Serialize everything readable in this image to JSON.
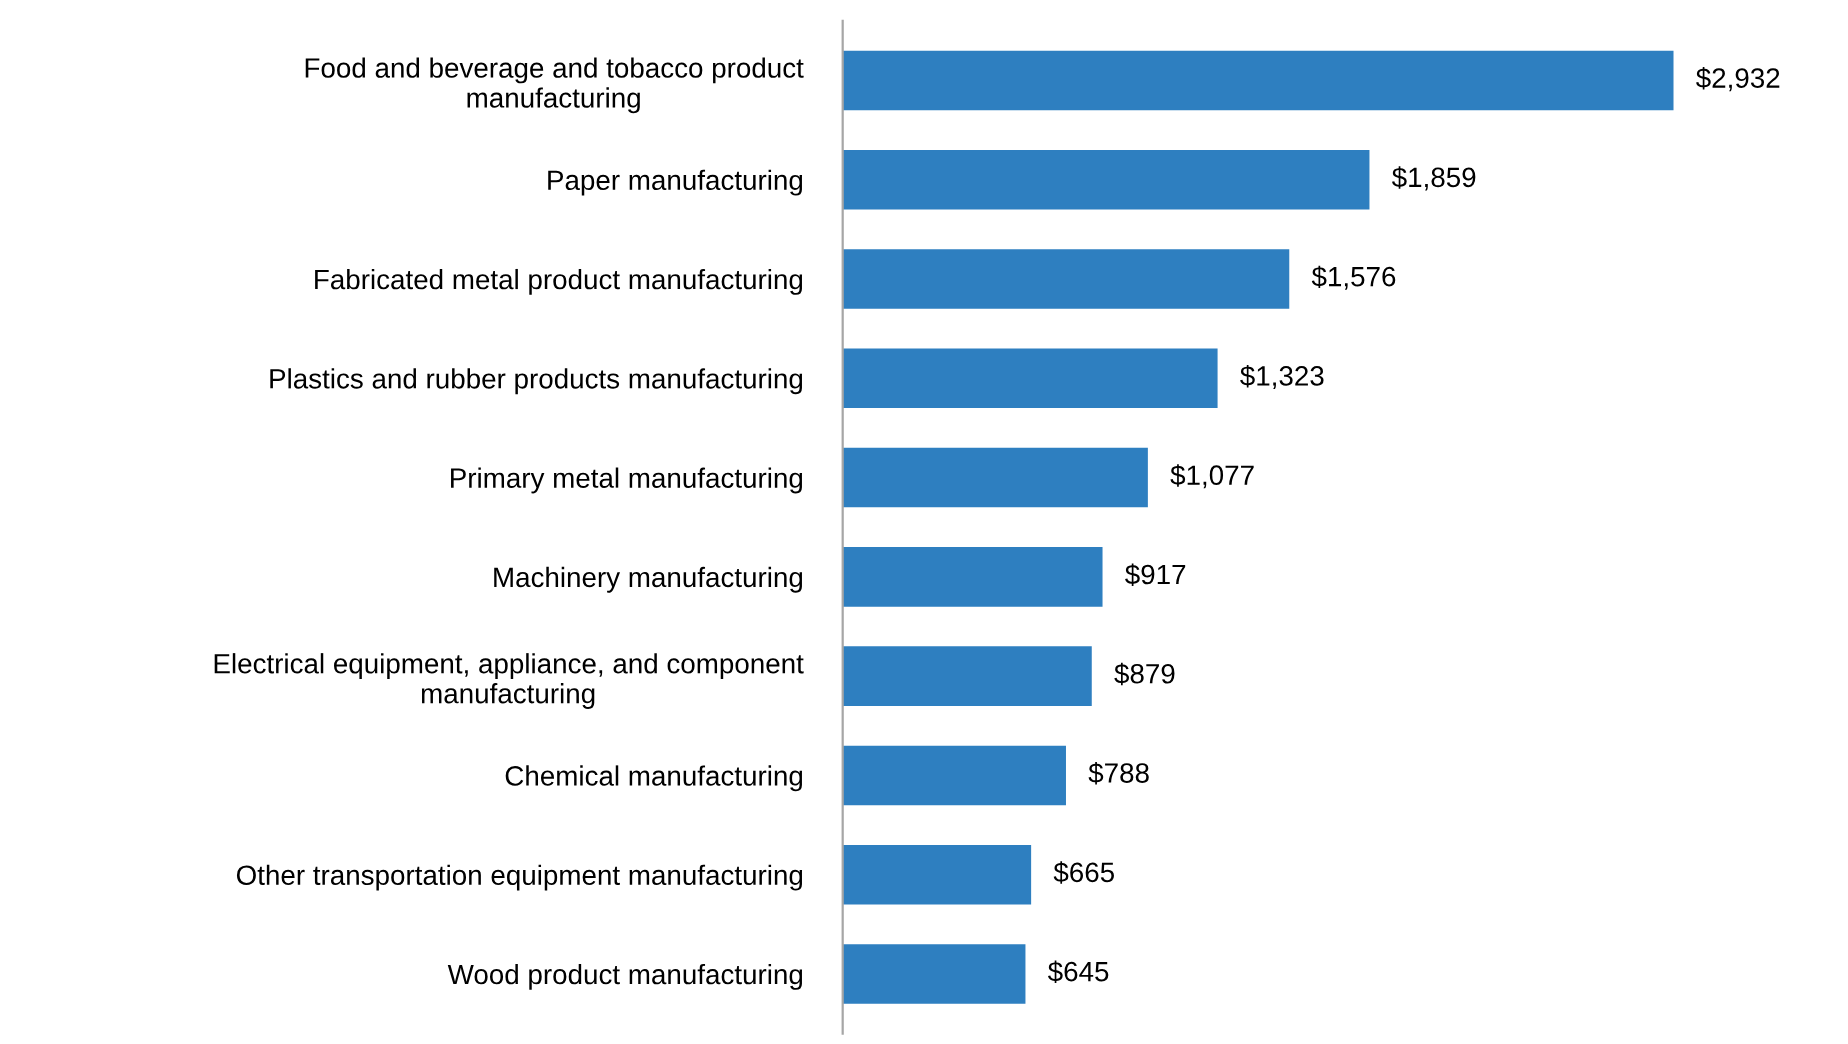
{
  "chart_data": {
    "type": "bar",
    "orientation": "horizontal",
    "categories": [
      "Food and beverage and tobacco product\nmanufacturing",
      "Paper manufacturing",
      "Fabricated metal product manufacturing",
      "Plastics and rubber products manufacturing",
      "Primary metal manufacturing",
      "Machinery manufacturing",
      "Electrical equipment, appliance, and component\nmanufacturing",
      "Chemical manufacturing",
      "Other transportation equipment manufacturing",
      "Wood product manufacturing"
    ],
    "values": [
      2932,
      1859,
      1576,
      1323,
      1077,
      917,
      879,
      788,
      665,
      645
    ],
    "value_labels": [
      "$2,932",
      "$1,859",
      "$1,576",
      "$1,323",
      "$1,077",
      "$917",
      "$879",
      "$788",
      "$665",
      "$645"
    ],
    "color": "#2e7fc0",
    "grid": false,
    "legend": false
  }
}
